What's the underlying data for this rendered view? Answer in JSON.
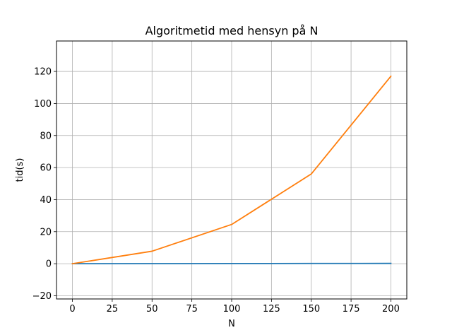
{
  "chart_data": {
    "type": "line",
    "title": "Algoritmetid med hensyn på N",
    "xlabel": "N",
    "ylabel": "tid(s)",
    "xlim": [
      -10,
      210
    ],
    "ylim": [
      -22,
      139
    ],
    "xticks": [
      0,
      25,
      50,
      75,
      100,
      125,
      150,
      175,
      200
    ],
    "yticks": [
      -20,
      0,
      20,
      40,
      60,
      80,
      100,
      120
    ],
    "grid": true,
    "legend": "none",
    "series": [
      {
        "color": "#1f77b4",
        "x": [
          0,
          50,
          100,
          150,
          200
        ],
        "values": [
          0,
          0.05,
          0.1,
          0.15,
          0.2
        ]
      },
      {
        "color": "#ff7f0e",
        "x": [
          0,
          50,
          100,
          150,
          200
        ],
        "values": [
          0,
          7.8,
          24.5,
          56,
          117
        ]
      }
    ]
  }
}
